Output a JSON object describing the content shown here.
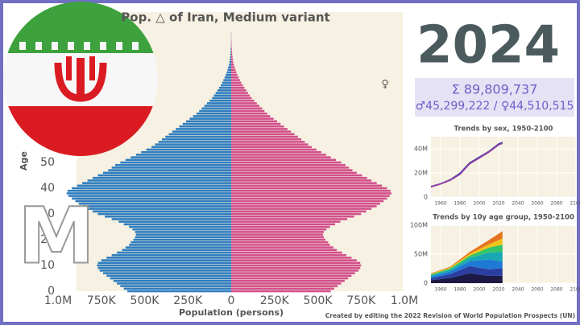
{
  "chart_data": [
    {
      "type": "pyramid",
      "title": "Pop. △ of Iran, Medium variant",
      "year": 2024,
      "total": "Σ 89,809,737",
      "by_sex": "♂45,299,222 / ♀44,510,515",
      "female_symbol": "♀",
      "watermark": "M",
      "xlabel": "Population (persons)",
      "ylabel": "Age",
      "credit": "Created by editing the 2022 Revision of World Population Prospects (UN)",
      "y": [
        0,
        1,
        2,
        3,
        4,
        5,
        6,
        7,
        8,
        9,
        10,
        11,
        12,
        13,
        14,
        15,
        16,
        17,
        18,
        19,
        20,
        21,
        22,
        23,
        24,
        25,
        26,
        27,
        28,
        29,
        30,
        31,
        32,
        33,
        34,
        35,
        36,
        37,
        38,
        39,
        40,
        41,
        42,
        43,
        44,
        45,
        46,
        47,
        48,
        49,
        50,
        51,
        52,
        53,
        54,
        55,
        56,
        57,
        58,
        59,
        60,
        61,
        62,
        63,
        64,
        65,
        66,
        67,
        68,
        69,
        70,
        71,
        72,
        73,
        74,
        75,
        76,
        77,
        78,
        79,
        80,
        81,
        82,
        83,
        84,
        85,
        86,
        87,
        88,
        89,
        90,
        91,
        92,
        93,
        94,
        95,
        96,
        97,
        98,
        99,
        100
      ],
      "series": [
        {
          "color": "#2f7dbf",
          "side": "left",
          "values": [
            600000,
            620000,
            640000,
            660000,
            680000,
            700000,
            720000,
            740000,
            760000,
            770000,
            775000,
            770000,
            750000,
            720000,
            690000,
            660000,
            630000,
            610000,
            590000,
            580000,
            565000,
            555000,
            550000,
            555000,
            570000,
            590000,
            620000,
            650000,
            690000,
            730000,
            770000,
            800000,
            830000,
            860000,
            880000,
            900000,
            920000,
            940000,
            950000,
            945000,
            920000,
            890000,
            860000,
            830000,
            800000,
            770000,
            740000,
            710000,
            690000,
            670000,
            640000,
            610000,
            580000,
            550000,
            520000,
            490000,
            460000,
            440000,
            420000,
            400000,
            380000,
            360000,
            340000,
            320000,
            300000,
            280000,
            260000,
            240000,
            220000,
            200000,
            185000,
            170000,
            155000,
            140000,
            125000,
            110000,
            100000,
            90000,
            80000,
            70000,
            60000,
            52000,
            45000,
            38000,
            32000,
            26000,
            21000,
            17000,
            13000,
            10000,
            8000,
            6000,
            5000,
            4000,
            3000,
            2000,
            2000,
            1000,
            1000,
            1000,
            1000
          ]
        },
        {
          "color": "#d2508b",
          "side": "right",
          "values": [
            575000,
            595000,
            615000,
            635000,
            655000,
            675000,
            695000,
            715000,
            735000,
            745000,
            750000,
            745000,
            725000,
            695000,
            665000,
            640000,
            610000,
            590000,
            570000,
            560000,
            545000,
            535000,
            530000,
            535000,
            550000,
            570000,
            600000,
            630000,
            670000,
            710000,
            750000,
            780000,
            810000,
            840000,
            860000,
            880000,
            900000,
            915000,
            925000,
            920000,
            900000,
            870000,
            840000,
            810000,
            785000,
            755000,
            725000,
            700000,
            680000,
            660000,
            635000,
            605000,
            575000,
            548000,
            520000,
            492000,
            465000,
            445000,
            425000,
            405000,
            385000,
            365000,
            345000,
            325000,
            305000,
            285000,
            265000,
            245000,
            225000,
            208000,
            192000,
            178000,
            163000,
            148000,
            133000,
            118000,
            107000,
            97000,
            87000,
            77000,
            67000,
            58000,
            50000,
            43000,
            36000,
            30000,
            25000,
            20000,
            16000,
            12000,
            10000,
            8000,
            6000,
            5000,
            4000,
            3000,
            2000,
            2000,
            1000,
            1000,
            1000
          ]
        }
      ],
      "xlim": [
        -1000000,
        1000000
      ],
      "xticks": [
        {
          "value": -1000000,
          "label": "1.0M"
        },
        {
          "value": -750000,
          "label": "750K"
        },
        {
          "value": -500000,
          "label": "500K"
        },
        {
          "value": -250000,
          "label": "250K"
        },
        0,
        {
          "value": 250000,
          "label": "250K"
        },
        {
          "value": 500000,
          "label": "500K"
        },
        {
          "value": 750000,
          "label": "750K"
        },
        {
          "value": 1000000,
          "label": "1.0M"
        }
      ],
      "ylim": [
        0,
        100
      ],
      "yticks": [
        0,
        10,
        20,
        30,
        40,
        50
      ]
    },
    {
      "type": "line",
      "title": "Trends by sex, 1950-2100",
      "x": [
        1950,
        1960,
        1970,
        1980,
        1990,
        2000,
        2010,
        2020,
        2024
      ],
      "series": [
        {
          "color": "#3b3f9e",
          "values": [
            8700000,
            11100000,
            14400000,
            19700000,
            28300000,
            33100000,
            37900000,
            44000000,
            45299222
          ]
        },
        {
          "color": "#9b3fa8",
          "values": [
            8400000,
            10800000,
            14000000,
            18800000,
            27500000,
            32400000,
            37300000,
            43300000,
            44510515
          ]
        }
      ],
      "xlim": [
        1950,
        2100
      ],
      "xticks": [
        1960,
        1980,
        2000,
        2020,
        2040,
        2060,
        2080,
        2100
      ],
      "ylim": [
        0,
        50000000
      ],
      "yticks": [
        0,
        {
          "value": 20000000,
          "label": "20M"
        },
        {
          "value": 40000000,
          "label": "40M"
        }
      ],
      "grid": true
    },
    {
      "type": "stacked_area",
      "title": "Trends by 10y age group, 1950-2100",
      "x": [
        1950,
        1970,
        1990,
        2010,
        2024
      ],
      "series": [
        {
          "color": "#1c1a45",
          "values": [
            5000000,
            9000000,
            17000000,
            12500000,
            12800000
          ]
        },
        {
          "color": "#2b3fa0",
          "values": [
            3500000,
            7000000,
            12500000,
            11500000,
            13200000
          ]
        },
        {
          "color": "#1f7ad6",
          "values": [
            2800000,
            4500000,
            8500000,
            17000000,
            11500000
          ]
        },
        {
          "color": "#18a7b5",
          "values": [
            2200000,
            3000000,
            5500000,
            12000000,
            16500000
          ]
        },
        {
          "color": "#35c46a",
          "values": [
            1600000,
            2200000,
            4000000,
            8500000,
            12500000
          ]
        },
        {
          "color": "#f0c419",
          "values": [
            1100000,
            1500000,
            3000000,
            5500000,
            10500000
          ]
        },
        {
          "color": "#e8731f",
          "values": [
            900000,
            1200000,
            3300000,
            7400000,
            12800000
          ]
        }
      ],
      "xlim": [
        1950,
        2100
      ],
      "xticks": [
        1960,
        1980,
        2000,
        2020,
        2040,
        2060,
        2080,
        2100
      ],
      "ylim": [
        0,
        100000000
      ],
      "yticks": [
        0,
        {
          "value": 50000000,
          "label": "50M"
        },
        {
          "value": 100000000,
          "label": "100M"
        }
      ],
      "grid": true
    }
  ]
}
